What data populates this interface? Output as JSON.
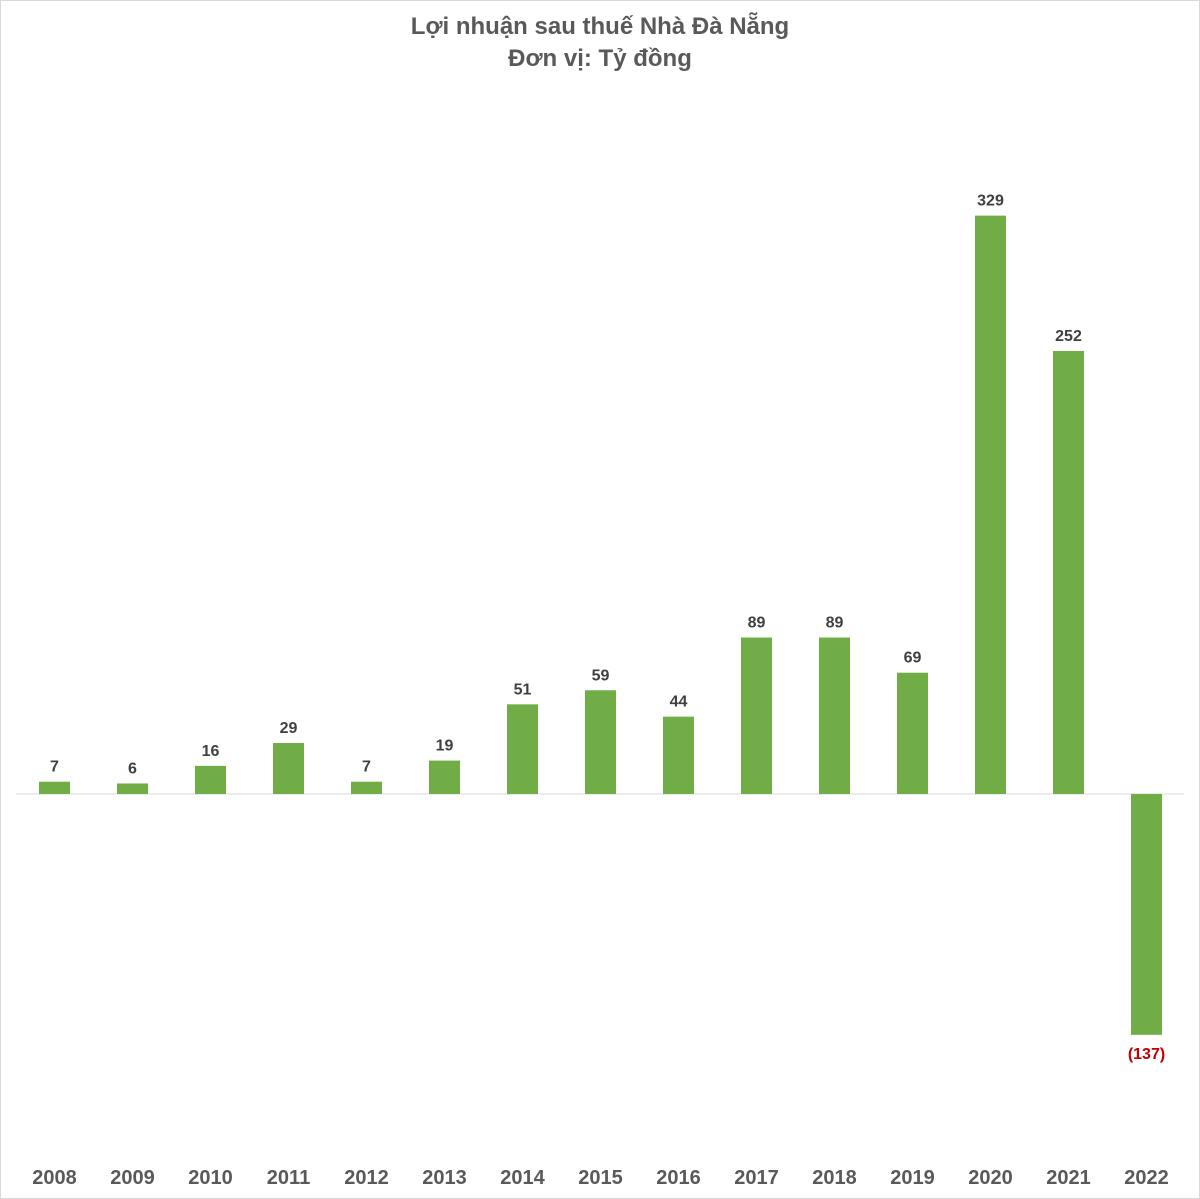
{
  "chart_data": {
    "type": "bar",
    "title": "Lợi nhuận sau thuế Nhà Đà Nẵng",
    "subtitle": "Đơn vị: Tỷ đồng",
    "xlabel": "",
    "ylabel": "",
    "categories": [
      "2008",
      "2009",
      "2010",
      "2011",
      "2012",
      "2013",
      "2014",
      "2015",
      "2016",
      "2017",
      "2018",
      "2019",
      "2020",
      "2021",
      "2022"
    ],
    "values": [
      7,
      6,
      16,
      29,
      7,
      19,
      51,
      59,
      44,
      89,
      89,
      69,
      329,
      252,
      -137
    ],
    "value_labels": [
      "7",
      "6",
      "16",
      "29",
      "7",
      "19",
      "51",
      "59",
      "44",
      "89",
      "89",
      "69",
      "329",
      "252",
      "(137)"
    ],
    "ylim": [
      -160,
      340
    ],
    "grid": false,
    "legend": "none",
    "colors": {
      "bar": "#70ad47",
      "positive_label": "#404040",
      "negative_label": "#c00000",
      "axis_line": "#d9d9d9"
    }
  }
}
